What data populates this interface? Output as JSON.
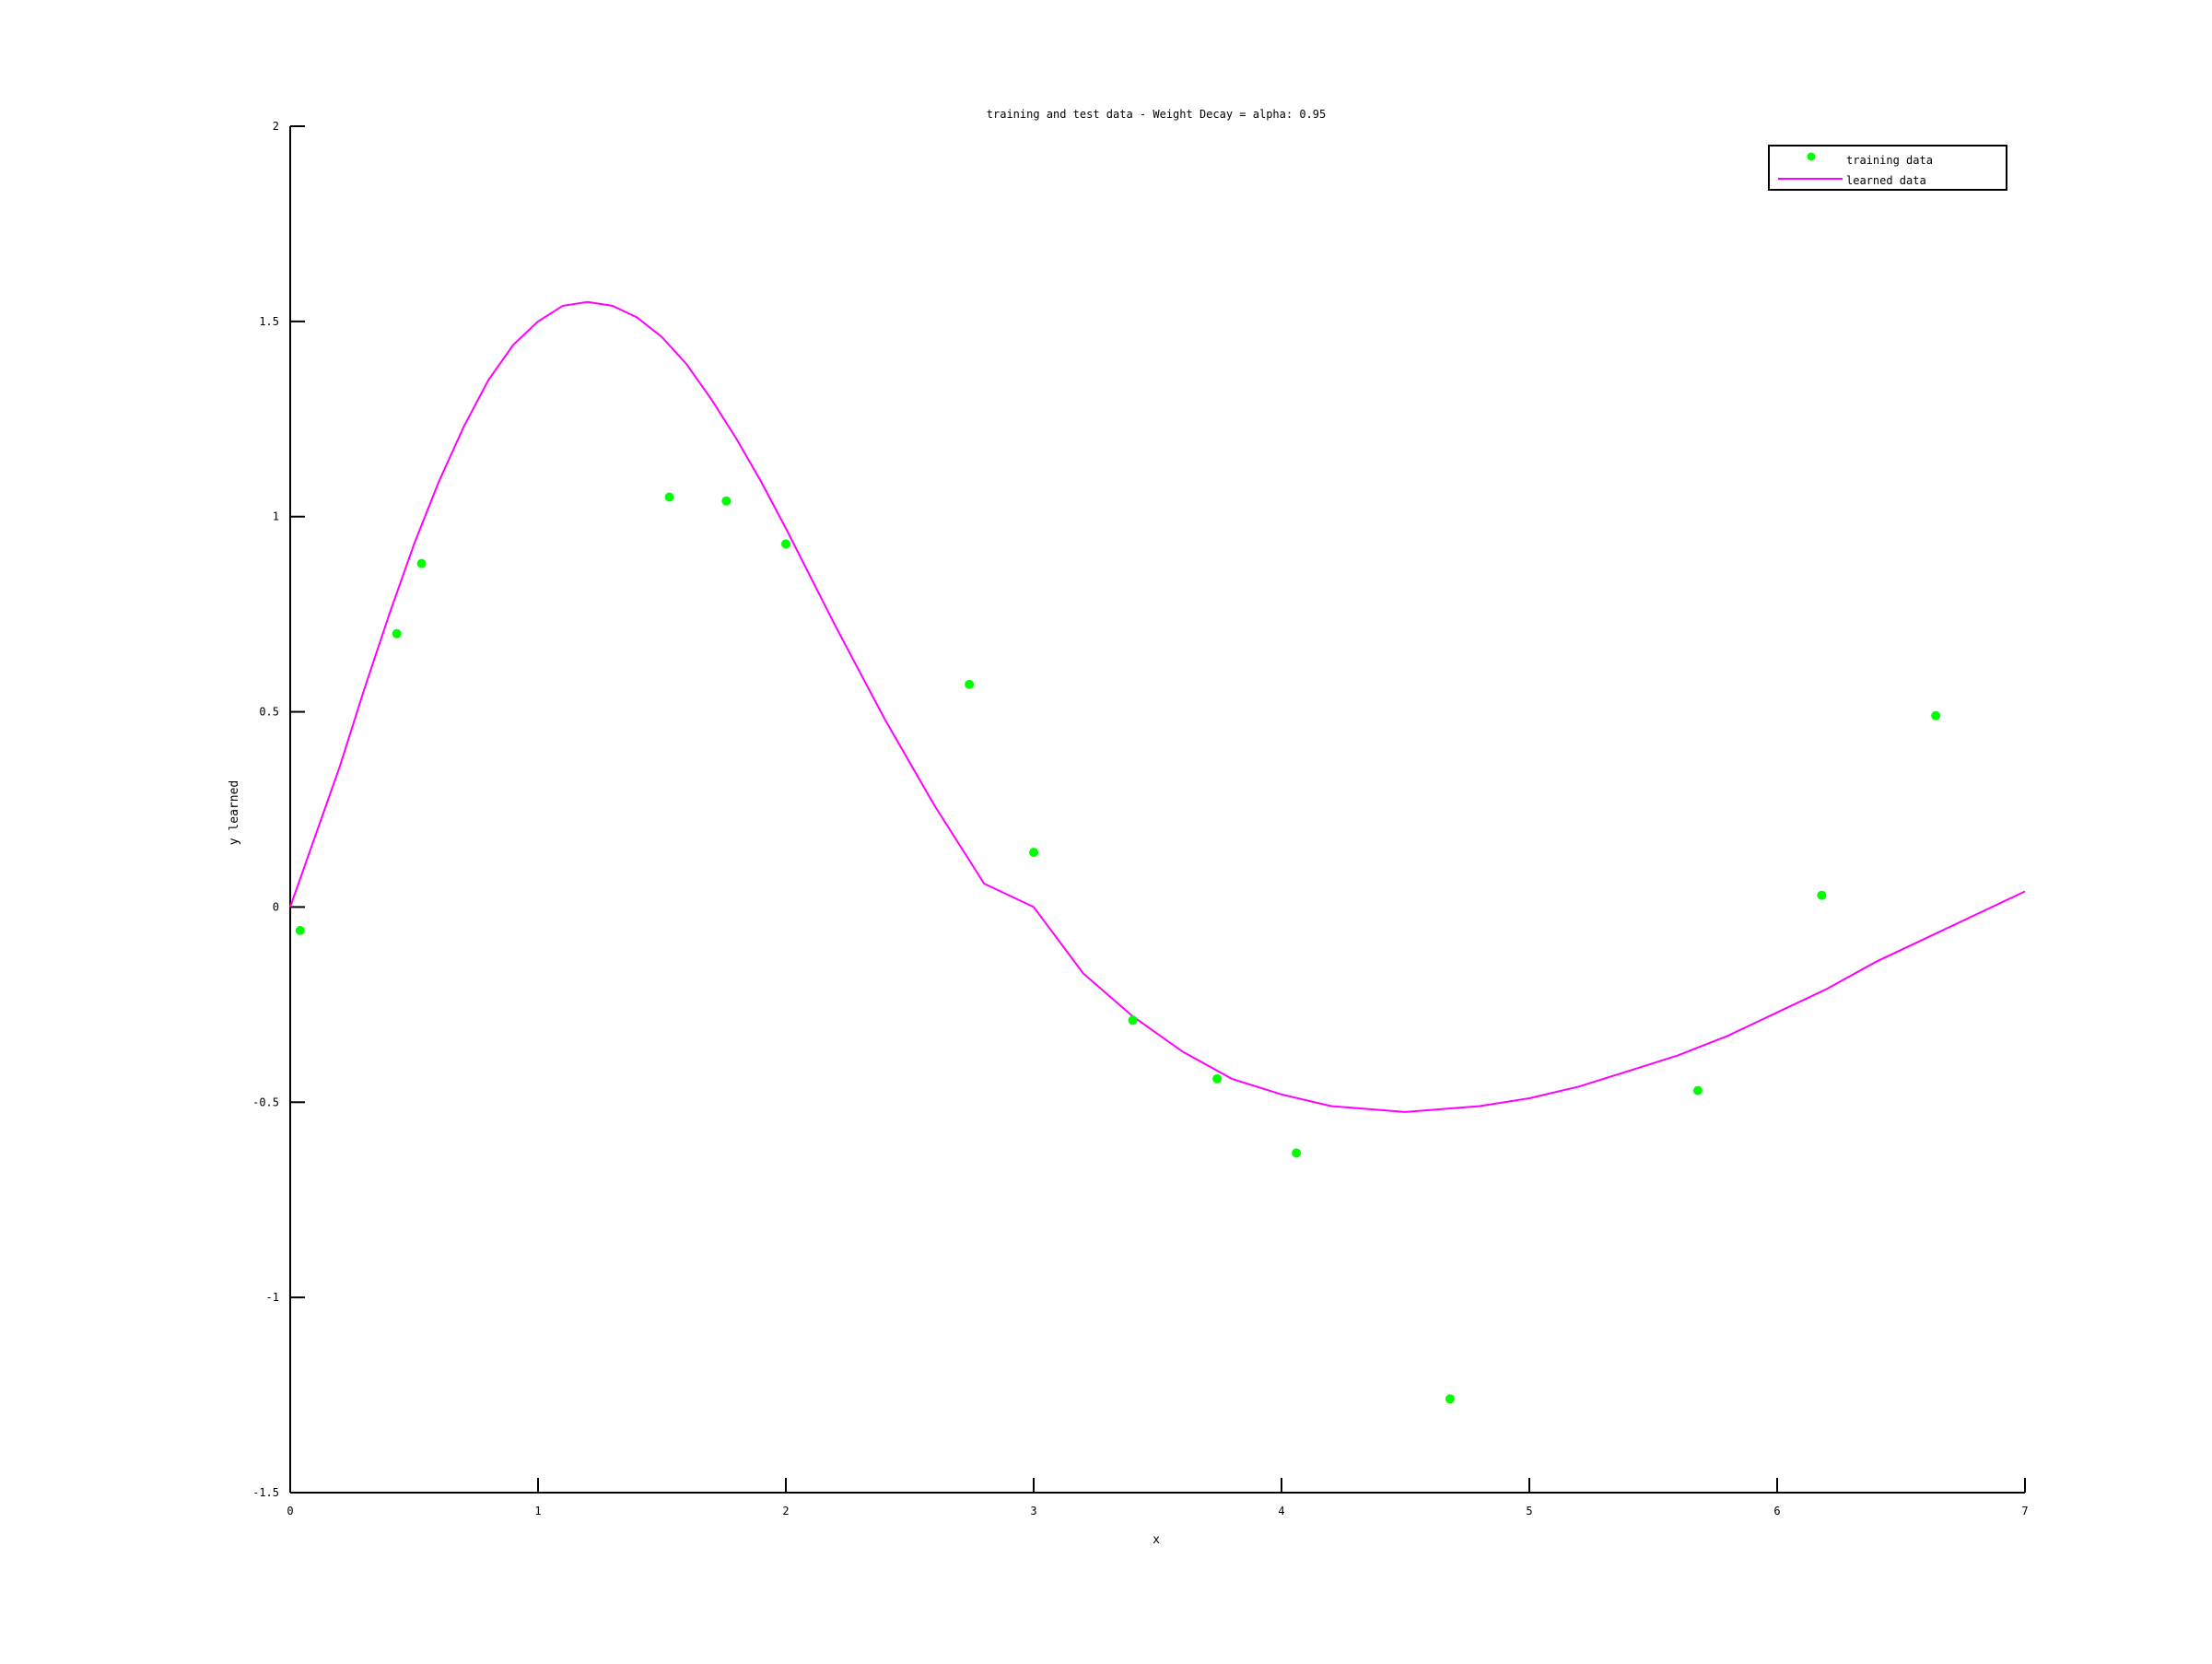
{
  "chart_data": {
    "type": "scatter",
    "title": "training and test data - Weight Decay = alpha: 0.95",
    "xlabel": "x",
    "ylabel": "y learned",
    "xlim": [
      0,
      7
    ],
    "ylim": [
      -1.5,
      2
    ],
    "xticks": [
      0,
      1,
      2,
      3,
      4,
      5,
      6,
      7
    ],
    "xtick_labels": [
      "0",
      "1",
      "2",
      "3",
      "4",
      "5",
      "6",
      "7"
    ],
    "yticks": [
      -1.5,
      -1,
      -0.5,
      0,
      0.5,
      1,
      1.5,
      2
    ],
    "ytick_labels": [
      "-1.5",
      "-1",
      "-0.5",
      "0",
      "0.5",
      "1",
      "1.5",
      "2"
    ],
    "grid": false,
    "legend_position": "top-right",
    "series": [
      {
        "name": "training data",
        "type": "scatter",
        "color": "#00ff00",
        "points": [
          [
            0.04,
            -0.06
          ],
          [
            0.43,
            0.7
          ],
          [
            0.53,
            0.88
          ],
          [
            1.53,
            1.05
          ],
          [
            1.76,
            1.04
          ],
          [
            2.0,
            0.93
          ],
          [
            2.74,
            0.57
          ],
          [
            3.0,
            0.14
          ],
          [
            3.4,
            -0.29
          ],
          [
            3.74,
            -0.44
          ],
          [
            4.06,
            -0.63
          ],
          [
            4.68,
            -1.26
          ],
          [
            5.68,
            -0.47
          ],
          [
            6.18,
            0.03
          ],
          [
            6.64,
            0.49
          ]
        ]
      },
      {
        "name": "learned data",
        "type": "line",
        "color": "#ff00ff",
        "points": [
          [
            0.0,
            0.0
          ],
          [
            0.1,
            0.18
          ],
          [
            0.2,
            0.36
          ],
          [
            0.3,
            0.56
          ],
          [
            0.4,
            0.75
          ],
          [
            0.5,
            0.93
          ],
          [
            0.6,
            1.09
          ],
          [
            0.7,
            1.23
          ],
          [
            0.8,
            1.35
          ],
          [
            0.9,
            1.44
          ],
          [
            1.0,
            1.5
          ],
          [
            1.1,
            1.54
          ],
          [
            1.2,
            1.55
          ],
          [
            1.3,
            1.54
          ],
          [
            1.4,
            1.51
          ],
          [
            1.5,
            1.46
          ],
          [
            1.6,
            1.39
          ],
          [
            1.7,
            1.3
          ],
          [
            1.8,
            1.2
          ],
          [
            1.9,
            1.09
          ],
          [
            2.0,
            0.97
          ],
          [
            2.2,
            0.72
          ],
          [
            2.4,
            0.48
          ],
          [
            2.6,
            0.26
          ],
          [
            2.8,
            0.06
          ],
          [
            3.0,
            0.0
          ],
          [
            3.2,
            -0.17
          ],
          [
            3.4,
            -0.28
          ],
          [
            3.6,
            -0.37
          ],
          [
            3.8,
            -0.44
          ],
          [
            4.0,
            -0.48
          ],
          [
            4.2,
            -0.51
          ],
          [
            4.4,
            -0.52
          ],
          [
            4.5,
            -0.525
          ],
          [
            4.6,
            -0.52
          ],
          [
            4.8,
            -0.51
          ],
          [
            5.0,
            -0.49
          ],
          [
            5.2,
            -0.46
          ],
          [
            5.4,
            -0.42
          ],
          [
            5.6,
            -0.38
          ],
          [
            5.8,
            -0.33
          ],
          [
            6.0,
            -0.27
          ],
          [
            6.2,
            -0.21
          ],
          [
            6.4,
            -0.14
          ],
          [
            6.6,
            -0.08
          ],
          [
            6.8,
            -0.02
          ],
          [
            7.0,
            0.04
          ]
        ]
      }
    ]
  }
}
